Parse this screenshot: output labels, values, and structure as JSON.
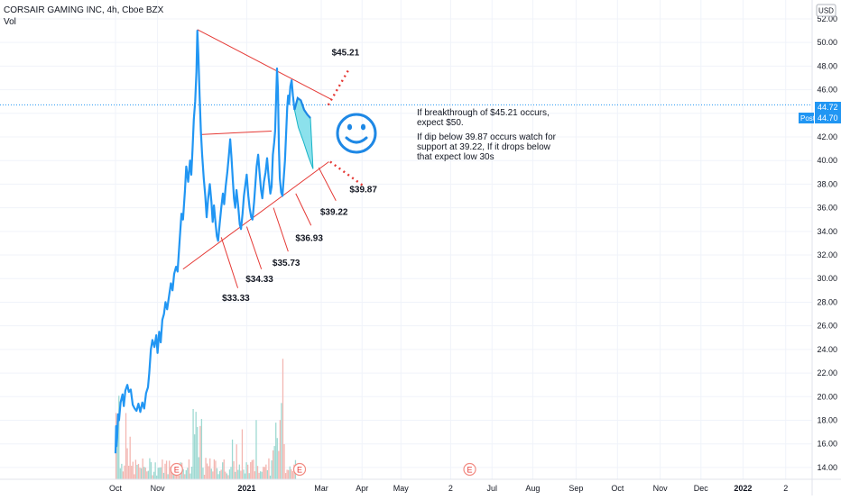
{
  "header": {
    "symbol_line": "CORSAIR GAMING INC, 4h, Cboe BZX",
    "volume_label": "Vol"
  },
  "chart_data": {
    "type": "line",
    "y_ticks": [
      "52.00",
      "50.00",
      "48.00",
      "46.00",
      "44.00",
      "42.00",
      "40.00",
      "38.00",
      "36.00",
      "34.00",
      "32.00",
      "30.00",
      "28.00",
      "26.00",
      "24.00",
      "22.00",
      "20.00",
      "18.00",
      "16.00",
      "14.00"
    ],
    "ylim": [
      13.0,
      53.6
    ],
    "x_ticks": [
      {
        "label": "Oct",
        "week": 0
      },
      {
        "label": "Nov",
        "week": 6.6
      },
      {
        "label": "2021",
        "week": 20.6,
        "strong": true
      },
      {
        "label": "Mar",
        "week": 32.3
      },
      {
        "label": "Apr",
        "week": 38.7
      },
      {
        "label": "May",
        "week": 44.8
      },
      {
        "label": "2",
        "week": 52.6
      },
      {
        "label": "Jul",
        "week": 59.1
      },
      {
        "label": "Aug",
        "week": 65.5
      },
      {
        "label": "Sep",
        "week": 72.3
      },
      {
        "label": "Oct",
        "week": 78.8
      },
      {
        "label": "Nov",
        "week": 85.5
      },
      {
        "label": "Dec",
        "week": 91.9
      },
      {
        "label": "2022",
        "week": 98.5,
        "strong": true
      },
      {
        "label": "2",
        "week": 105.2
      }
    ],
    "currency": "USD",
    "price_badge": "44.72",
    "post_badge_label": "Post",
    "post_badge_value": "44.70",
    "last_price": 44.72,
    "earnings_marker": "E",
    "earnings_weeks": [
      9.6,
      28.9,
      55.6
    ],
    "series": [
      {
        "color": "#2196f3",
        "points": [
          [
            0.0,
            15.2
          ],
          [
            0.1,
            17.5
          ],
          [
            0.15,
            15.8
          ],
          [
            0.25,
            16.5
          ],
          [
            0.4,
            18.5
          ],
          [
            0.55,
            18.0
          ],
          [
            0.8,
            19.5
          ],
          [
            1.1,
            20.2
          ],
          [
            1.3,
            19.2
          ],
          [
            1.55,
            20.5
          ],
          [
            1.85,
            21.0
          ],
          [
            2.1,
            20.4
          ],
          [
            2.4,
            20.6
          ],
          [
            2.7,
            19.3
          ],
          [
            3.0,
            19.0
          ],
          [
            3.3,
            18.8
          ],
          [
            3.6,
            19.4
          ],
          [
            3.9,
            18.7
          ],
          [
            4.2,
            19.5
          ],
          [
            4.5,
            19.0
          ],
          [
            4.8,
            20.3
          ],
          [
            5.1,
            20.8
          ],
          [
            5.3,
            22.0
          ],
          [
            5.55,
            24.0
          ],
          [
            5.8,
            24.8
          ],
          [
            6.1,
            24.2
          ],
          [
            6.4,
            25.2
          ],
          [
            6.6,
            23.7
          ],
          [
            6.85,
            25.5
          ],
          [
            7.1,
            24.6
          ],
          [
            7.35,
            26.5
          ],
          [
            7.6,
            27.0
          ],
          [
            7.85,
            28.0
          ],
          [
            8.1,
            27.4
          ],
          [
            8.4,
            28.5
          ],
          [
            8.7,
            29.6
          ],
          [
            8.95,
            29.0
          ],
          [
            9.2,
            30.4
          ],
          [
            9.5,
            31.0
          ],
          [
            9.75,
            30.6
          ],
          [
            10.1,
            33.5
          ],
          [
            10.35,
            35.5
          ],
          [
            10.6,
            35.0
          ],
          [
            10.9,
            37.5
          ],
          [
            11.1,
            39.5
          ],
          [
            11.4,
            38.2
          ],
          [
            11.7,
            40.0
          ],
          [
            11.9,
            38.8
          ],
          [
            12.1,
            41.0
          ],
          [
            12.3,
            43.5
          ],
          [
            12.5,
            45.0
          ],
          [
            12.7,
            47.5
          ],
          [
            12.85,
            51.0
          ],
          [
            13.0,
            49.0
          ],
          [
            13.2,
            45.5
          ],
          [
            13.4,
            42.5
          ],
          [
            13.6,
            40.5
          ],
          [
            13.85,
            38.5
          ],
          [
            14.1,
            37.0
          ],
          [
            14.3,
            35.2
          ],
          [
            14.55,
            36.8
          ],
          [
            14.8,
            38.0
          ],
          [
            15.05,
            36.5
          ],
          [
            15.25,
            34.8
          ],
          [
            15.45,
            36.2
          ],
          [
            15.65,
            35.0
          ],
          [
            15.9,
            33.6
          ],
          [
            16.1,
            33.2
          ],
          [
            16.35,
            34.6
          ],
          [
            16.6,
            36.0
          ],
          [
            16.85,
            37.2
          ],
          [
            17.05,
            36.3
          ],
          [
            17.3,
            37.8
          ],
          [
            17.55,
            39.0
          ],
          [
            17.8,
            40.5
          ],
          [
            18.0,
            41.8
          ],
          [
            18.2,
            40.3
          ],
          [
            18.4,
            38.5
          ],
          [
            18.6,
            36.8
          ],
          [
            18.8,
            36.0
          ],
          [
            19.0,
            37.5
          ],
          [
            19.25,
            36.2
          ],
          [
            19.5,
            34.6
          ],
          [
            19.7,
            34.2
          ],
          [
            19.95,
            35.5
          ],
          [
            20.15,
            37.0
          ],
          [
            20.4,
            38.0
          ],
          [
            20.6,
            38.8
          ],
          [
            20.85,
            37.0
          ],
          [
            21.05,
            36.0
          ],
          [
            21.3,
            35.2
          ],
          [
            21.5,
            35.0
          ],
          [
            21.75,
            36.5
          ],
          [
            21.95,
            38.0
          ],
          [
            22.15,
            39.5
          ],
          [
            22.4,
            40.5
          ],
          [
            22.6,
            39.0
          ],
          [
            22.85,
            37.5
          ],
          [
            23.05,
            36.8
          ],
          [
            23.3,
            38.2
          ],
          [
            23.55,
            39.0
          ],
          [
            23.8,
            40.2
          ],
          [
            24.05,
            38.5
          ],
          [
            24.3,
            37.2
          ],
          [
            24.5,
            37.8
          ],
          [
            24.7,
            40.5
          ],
          [
            24.9,
            41.5
          ],
          [
            25.05,
            42.5
          ],
          [
            25.2,
            45.0
          ],
          [
            25.35,
            47.8
          ],
          [
            25.5,
            46.0
          ],
          [
            25.65,
            41.0
          ],
          [
            25.8,
            38.5
          ],
          [
            26.0,
            37.3
          ],
          [
            26.2,
            37.0
          ],
          [
            26.4,
            38.5
          ],
          [
            26.6,
            40.0
          ],
          [
            26.8,
            42.5
          ],
          [
            26.95,
            44.5
          ],
          [
            27.1,
            45.5
          ],
          [
            27.25,
            44.8
          ],
          [
            27.45,
            46.3
          ],
          [
            27.65,
            46.8
          ],
          [
            27.85,
            45.5
          ],
          [
            28.1,
            44.3
          ]
        ]
      }
    ],
    "forecast": {
      "color": "#26c6da",
      "upper": [
        [
          28.1,
          44.3
        ],
        [
          28.6,
          45.3
        ],
        [
          29.1,
          45.1
        ],
        [
          29.6,
          44.3
        ],
        [
          30.1,
          43.9
        ],
        [
          30.6,
          43.6
        ]
      ],
      "lower": [
        [
          28.1,
          44.3
        ],
        [
          28.7,
          42.8
        ],
        [
          29.5,
          41.6
        ],
        [
          30.3,
          40.3
        ],
        [
          31.0,
          39.3
        ]
      ]
    },
    "trendlines": [
      {
        "name": "descending-resistance",
        "color": "#e53935",
        "dashed": false,
        "p1": [
          12.85,
          51.1
        ],
        "p2": [
          33.8,
          45.2
        ]
      },
      {
        "name": "resistance-extension",
        "color": "#e53935",
        "dashed": true,
        "p1": [
          33.4,
          44.7
        ],
        "p2": [
          36.6,
          47.7
        ]
      },
      {
        "name": "ascending-support",
        "color": "#e53935",
        "dashed": false,
        "p1": [
          10.6,
          30.8
        ],
        "p2": [
          33.5,
          39.9
        ]
      },
      {
        "name": "support-extension",
        "color": "#e53935",
        "dashed": true,
        "p1": [
          33.7,
          39.9
        ],
        "p2": [
          38.8,
          37.9
        ]
      },
      {
        "name": "mid-level",
        "color": "#e53935",
        "dashed": false,
        "p1": [
          13.3,
          42.2
        ],
        "p2": [
          24.5,
          42.5
        ]
      }
    ],
    "markers": [
      {
        "label": "$33.33",
        "from": [
          16.6,
          33.5
        ],
        "to": [
          19.2,
          29.2
        ],
        "text_at": [
          18.9,
          28.1
        ]
      },
      {
        "label": "$34.33",
        "from": [
          20.6,
          34.4
        ],
        "to": [
          22.9,
          30.8
        ],
        "text_at": [
          22.6,
          29.7
        ]
      },
      {
        "label": "$35.73",
        "from": [
          24.8,
          36.0
        ],
        "to": [
          27.1,
          32.3
        ],
        "text_at": [
          26.8,
          31.1
        ]
      },
      {
        "label": "$36.93",
        "from": [
          28.3,
          37.2
        ],
        "to": [
          30.7,
          34.5
        ],
        "text_at": [
          30.4,
          33.2
        ]
      },
      {
        "label": "$39.22",
        "from": [
          31.9,
          39.4
        ],
        "to": [
          34.6,
          36.6
        ],
        "text_at": [
          34.3,
          35.4
        ]
      },
      {
        "label": "$45.21",
        "text_at": [
          36.1,
          48.9
        ]
      },
      {
        "label": "$39.87",
        "text_at": [
          38.9,
          37.3
        ]
      }
    ],
    "notes": {
      "line1": "If breakthrough of $45.21 occurs,",
      "line2": "expect $50.",
      "line3": "If dip below 39.87 occurs watch for",
      "line4": "support at 39.22, If it drops below",
      "line5": "that expect low 30s"
    }
  }
}
